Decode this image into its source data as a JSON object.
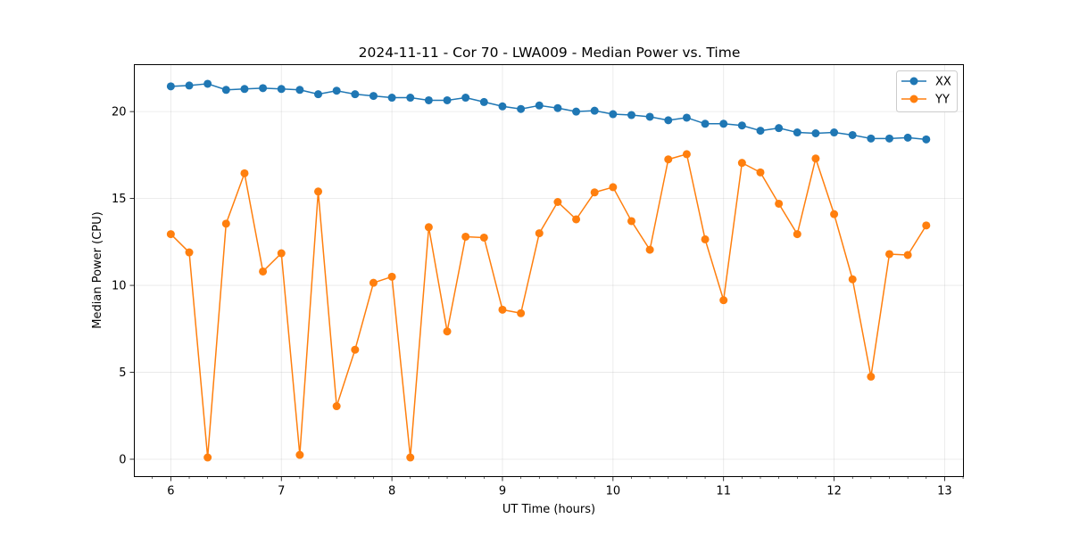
{
  "chart_data": {
    "type": "line",
    "title": "2024-11-11 - Cor 70 - LWA009 - Median Power vs. Time",
    "xlabel": "UT Time (hours)",
    "ylabel": "Median Power (CPU)",
    "xlim": [
      5.67,
      13.17
    ],
    "ylim": [
      -1.0,
      22.7
    ],
    "grid": true,
    "legend_position": "top-right",
    "x_major_ticks": [
      {
        "value": 6,
        "label": "6"
      },
      {
        "value": 7,
        "label": "7"
      },
      {
        "value": 8,
        "label": "8"
      },
      {
        "value": 9,
        "label": "9"
      },
      {
        "value": 10,
        "label": "10"
      },
      {
        "value": 11,
        "label": "11"
      },
      {
        "value": 12,
        "label": "12"
      },
      {
        "value": 13,
        "label": "13"
      }
    ],
    "y_major_ticks": [
      {
        "value": 0,
        "label": "0"
      },
      {
        "value": 5,
        "label": "5"
      },
      {
        "value": 10,
        "label": "10"
      },
      {
        "value": 15,
        "label": "15"
      },
      {
        "value": 20,
        "label": "20"
      }
    ],
    "x": [
      6.0,
      6.1667,
      6.3333,
      6.5,
      6.6667,
      6.8333,
      7.0,
      7.1667,
      7.3333,
      7.5,
      7.6667,
      7.8333,
      8.0,
      8.1667,
      8.3333,
      8.5,
      8.6667,
      8.8333,
      9.0,
      9.1667,
      9.3333,
      9.5,
      9.6667,
      9.8333,
      10.0,
      10.1667,
      10.3333,
      10.5,
      10.6667,
      10.8333,
      11.0,
      11.1667,
      11.3333,
      11.5,
      11.6667,
      11.8333,
      12.0,
      12.1667,
      12.3333,
      12.5,
      12.6667,
      12.8333
    ],
    "series": [
      {
        "name": "XX",
        "color": "#1f77b4",
        "values": [
          21.45,
          21.5,
          21.6,
          21.25,
          21.3,
          21.35,
          21.3,
          21.25,
          21.0,
          21.2,
          21.0,
          20.9,
          20.8,
          20.8,
          20.65,
          20.65,
          20.8,
          20.55,
          20.3,
          20.15,
          20.35,
          20.2,
          20.0,
          20.05,
          19.85,
          19.8,
          19.7,
          19.5,
          19.65,
          19.3,
          19.3,
          19.2,
          18.9,
          19.05,
          18.8,
          18.75,
          18.8,
          18.65,
          18.45,
          18.45,
          18.5,
          18.4
        ]
      },
      {
        "name": "YY",
        "color": "#ff7f0e",
        "values": [
          12.95,
          11.9,
          0.1,
          13.55,
          16.45,
          10.8,
          11.85,
          0.25,
          15.4,
          3.05,
          6.3,
          10.15,
          10.5,
          0.1,
          13.35,
          7.35,
          12.8,
          12.75,
          8.6,
          8.4,
          13.0,
          14.8,
          13.8,
          15.35,
          15.65,
          13.7,
          12.05,
          17.25,
          17.55,
          12.65,
          9.15,
          17.05,
          16.5,
          14.7,
          12.95,
          17.3,
          14.1,
          10.35,
          4.75,
          11.8,
          11.75,
          13.45
        ]
      }
    ]
  }
}
